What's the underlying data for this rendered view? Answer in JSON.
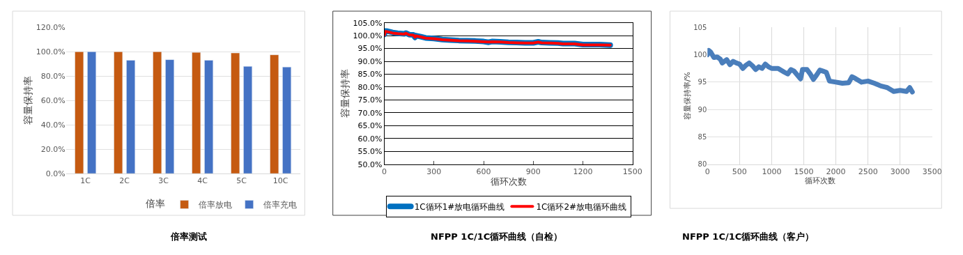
{
  "chart_data": [
    {
      "type": "bar",
      "ylabel": "容量保持率",
      "legend_title": "倍率",
      "categories": [
        "1C",
        "2C",
        "3C",
        "4C",
        "5C",
        "10C"
      ],
      "series": [
        {
          "name": "倍率放电",
          "color": "#c55a11",
          "values": [
            100,
            100,
            100,
            99.5,
            99,
            97.5
          ]
        },
        {
          "name": "倍率充电",
          "color": "#4472c4",
          "values": [
            100,
            93,
            93.5,
            93,
            88,
            87.5
          ]
        }
      ],
      "ylim": [
        0,
        120
      ],
      "yticks": [
        {
          "value": 0,
          "label": "0.0%"
        },
        {
          "value": 20,
          "label": "20.0%"
        },
        {
          "value": 40,
          "label": "40.0%"
        },
        {
          "value": 60,
          "label": "60.0%"
        },
        {
          "value": 80,
          "label": "80.0%"
        },
        {
          "value": 100,
          "label": "100.0%"
        },
        {
          "value": 120,
          "label": "120.0%"
        }
      ],
      "grid": "y",
      "legend": "bottom",
      "annotations": [
        "倍率测试"
      ]
    },
    {
      "type": "line",
      "xlabel": "循环次数",
      "ylabel": "容量保持率",
      "series": [
        {
          "name": "1C循环1#放电循环曲线",
          "color": "#0070c0",
          "x": [
            0,
            5,
            20,
            50,
            80,
            120,
            130,
            150,
            175,
            185,
            190,
            220,
            250,
            300,
            350,
            400,
            450,
            500,
            550,
            600,
            630,
            650,
            700,
            750,
            800,
            850,
            900,
            930,
            950,
            1000,
            1050,
            1080,
            1100,
            1150,
            1200,
            1250,
            1300,
            1365
          ],
          "values": [
            100.5,
            101.8,
            101.7,
            101.2,
            100.9,
            100.7,
            101.0,
            100.4,
            100.3,
            99.3,
            100.0,
            99.6,
            99.1,
            98.9,
            98.5,
            98.3,
            98.1,
            98.0,
            97.9,
            97.7,
            97.4,
            97.7,
            97.6,
            97.4,
            97.3,
            97.2,
            97.2,
            97.6,
            97.3,
            97.2,
            97.1,
            96.9,
            96.9,
            96.9,
            96.5,
            96.5,
            96.5,
            96.3
          ]
        },
        {
          "name": "1C循环2#放电循环曲线",
          "color": "#ff0000",
          "x": [
            0,
            5,
            20,
            50,
            80,
            120,
            130,
            150,
            175,
            185,
            190,
            220,
            250,
            300,
            350,
            400,
            450,
            500,
            550,
            600,
            630,
            650,
            700,
            750,
            800,
            850,
            900,
            930,
            950,
            1000,
            1050,
            1080,
            1100,
            1150,
            1200,
            1250,
            1300,
            1365
          ],
          "values": [
            100.2,
            101.6,
            101.5,
            101.0,
            100.8,
            100.6,
            100.9,
            100.3,
            100.2,
            99.4,
            99.9,
            99.5,
            99.0,
            98.8,
            98.4,
            98.2,
            98.0,
            97.9,
            97.8,
            97.6,
            97.5,
            97.6,
            97.5,
            97.3,
            97.2,
            97.1,
            97.1,
            97.5,
            97.2,
            97.1,
            97.0,
            96.8,
            96.8,
            96.8,
            96.4,
            96.4,
            96.4,
            96.3
          ]
        }
      ],
      "xlim": [
        0,
        1500
      ],
      "xticks": [
        0,
        300,
        600,
        900,
        1200,
        1500
      ],
      "ylim": [
        50,
        105
      ],
      "yticks": [
        {
          "value": 50,
          "label": "50.0%"
        },
        {
          "value": 55,
          "label": "55.0%"
        },
        {
          "value": 60,
          "label": "60.0%"
        },
        {
          "value": 65,
          "label": "65.0%"
        },
        {
          "value": 70,
          "label": "70.0%"
        },
        {
          "value": 75,
          "label": "75.0%"
        },
        {
          "value": 80,
          "label": "80.0%"
        },
        {
          "value": 85,
          "label": "85.0%"
        },
        {
          "value": 90,
          "label": "90.0%"
        },
        {
          "value": 95,
          "label": "95.0%"
        },
        {
          "value": 100,
          "label": "100.0%"
        },
        {
          "value": 105,
          "label": "105.0%"
        }
      ],
      "grid": "y",
      "legend": "bottom",
      "marker": "none",
      "annotations": [
        "NFPP 1C/1C循环曲线（自检）"
      ]
    },
    {
      "type": "line",
      "xlabel": "循环次数",
      "ylabel": "容量保持率/%",
      "series": [
        {
          "color": "#4a7ebb",
          "x": [
            0,
            20,
            50,
            100,
            150,
            200,
            230,
            300,
            350,
            400,
            450,
            500,
            550,
            600,
            650,
            700,
            750,
            800,
            850,
            900,
            950,
            1000,
            1100,
            1200,
            1250,
            1300,
            1350,
            1400,
            1450,
            1480,
            1550,
            1600,
            1650,
            1700,
            1750,
            1800,
            1850,
            1900,
            2000,
            2100,
            2200,
            2250,
            2300,
            2400,
            2500,
            2600,
            2700,
            2800,
            2900,
            3000,
            3100,
            3150,
            3190
          ],
          "values": [
            100,
            100.8,
            100.5,
            99.5,
            99.6,
            99.2,
            98.5,
            99.1,
            98.2,
            98.8,
            98.5,
            98.3,
            97.5,
            98.1,
            98.5,
            98.0,
            97.3,
            97.8,
            97.5,
            98.3,
            97.8,
            97.5,
            97.5,
            96.8,
            96.5,
            97.3,
            97.0,
            96.3,
            95.6,
            97.3,
            97.3,
            96.5,
            95.5,
            96.3,
            97.2,
            97.0,
            96.8,
            95.2,
            95.0,
            94.8,
            94.9,
            96.0,
            95.7,
            95.0,
            95.2,
            94.8,
            94.3,
            94.0,
            93.3,
            93.5,
            93.3,
            94.0,
            93.2
          ]
        }
      ],
      "xlim": [
        0,
        3500
      ],
      "xticks": [
        0,
        500,
        1000,
        1500,
        2000,
        2500,
        3000,
        3500
      ],
      "ylim": [
        80,
        105
      ],
      "yticks": [
        80,
        85,
        90,
        95,
        100,
        105
      ],
      "grid": true,
      "marker": "none",
      "annotations": [
        "NFPP 1C/1C循环曲线（客户）"
      ]
    }
  ]
}
